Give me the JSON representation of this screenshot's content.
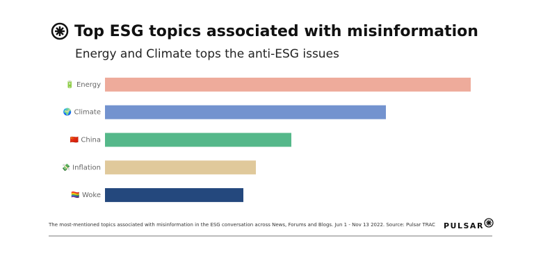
{
  "chart_data": {
    "type": "hbar",
    "title": "Top ESG topics associated with misinformation",
    "subtitle": "Energy and Climate tops the anti-ESG issues",
    "categories": [
      "🔋 Energy",
      "🌍 Climate",
      "🇨🇳 China",
      "💸 Inflation",
      "🏳️‍🌈 Woke"
    ],
    "series": [
      {
        "values": [
          526,
          404,
          268,
          217,
          199
        ]
      }
    ],
    "colors": [
      "#eeab9b",
      "#7393cf",
      "#55b88a",
      "#e0c99b",
      "#24487d"
    ],
    "xlim": [
      0,
      526
    ],
    "note": "The most-mentioned topics associated with misinformation in the ESG conversation across News, Forums and Blogs. Jun 1 - Nov 13 2022. Source: Pulsar TRAC",
    "brand": "PULSAR"
  }
}
